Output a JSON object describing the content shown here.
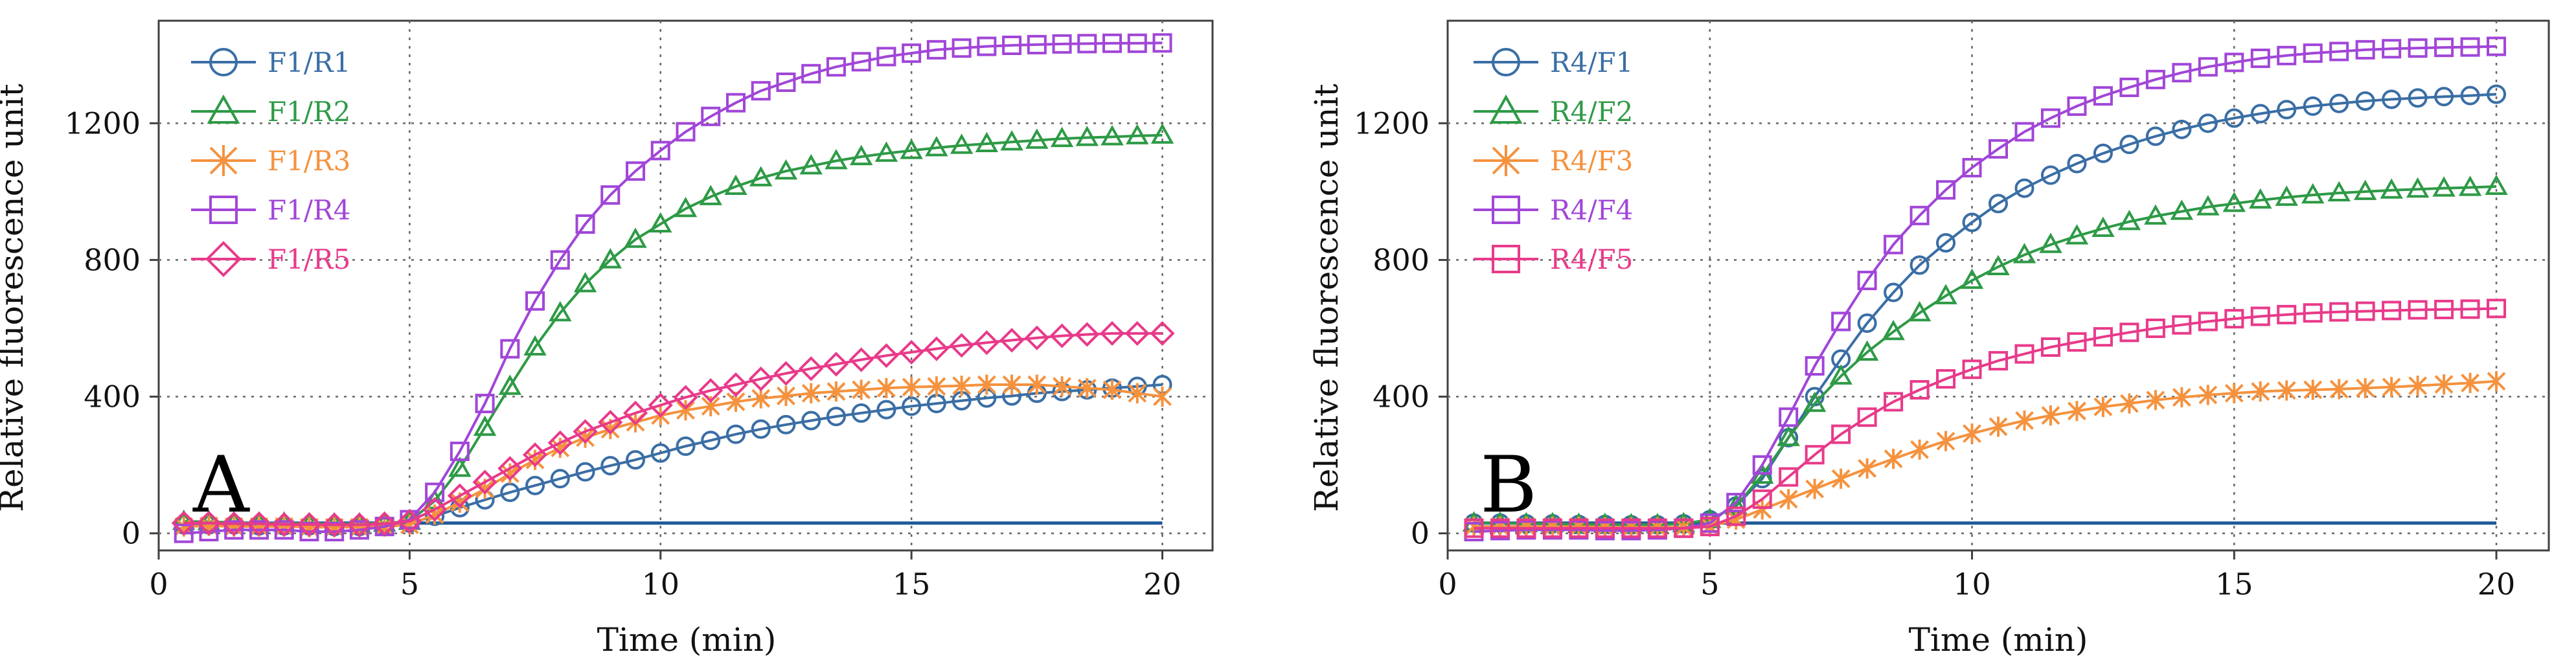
{
  "chart_data": [
    {
      "type": "line",
      "panel_label": "A",
      "xlabel": "Time (min)",
      "ylabel": "Relative fluorescence unit",
      "xlim": [
        0,
        21
      ],
      "ylim": [
        -50,
        1500
      ],
      "xticks": [
        0,
        5,
        10,
        15,
        20
      ],
      "yticks": [
        0,
        400,
        800,
        1200
      ],
      "grid": true,
      "legend_position": "top-left",
      "baseline": {
        "y": 30,
        "x_range": [
          0.5,
          20
        ],
        "color": "#1f5a9a"
      },
      "x": [
        0.5,
        1,
        1.5,
        2,
        2.5,
        3,
        3.5,
        4,
        4.5,
        5,
        5.5,
        6,
        6.5,
        7,
        7.5,
        8,
        8.5,
        9,
        9.5,
        10,
        10.5,
        11,
        11.5,
        12,
        12.5,
        13,
        13.5,
        14,
        14.5,
        15,
        15.5,
        16,
        16.5,
        17,
        17.5,
        18,
        18.5,
        19,
        19.5,
        20
      ],
      "series": [
        {
          "name": "F1/R1",
          "color": "#3a6ea5",
          "marker": "circle",
          "values": [
            25,
            25,
            25,
            22,
            22,
            22,
            20,
            20,
            22,
            30,
            50,
            75,
            98,
            120,
            140,
            160,
            180,
            198,
            215,
            235,
            255,
            272,
            290,
            305,
            318,
            330,
            342,
            352,
            362,
            372,
            380,
            388,
            396,
            402,
            410,
            415,
            420,
            425,
            430,
            435
          ]
        },
        {
          "name": "F1/R2",
          "color": "#2e9a46",
          "marker": "triangle",
          "values": [
            35,
            34,
            32,
            30,
            30,
            28,
            28,
            28,
            30,
            35,
            95,
            190,
            310,
            430,
            545,
            645,
            730,
            800,
            860,
            905,
            950,
            985,
            1015,
            1040,
            1060,
            1075,
            1090,
            1102,
            1112,
            1120,
            1128,
            1135,
            1140,
            1145,
            1150,
            1155,
            1158,
            1160,
            1163,
            1165
          ]
        },
        {
          "name": "F1/R3",
          "color": "#f5923e",
          "marker": "x",
          "values": [
            20,
            22,
            20,
            20,
            20,
            18,
            18,
            18,
            20,
            25,
            55,
            90,
            130,
            175,
            215,
            250,
            280,
            305,
            325,
            345,
            360,
            372,
            385,
            395,
            402,
            410,
            415,
            420,
            425,
            428,
            430,
            432,
            435,
            435,
            435,
            430,
            425,
            420,
            410,
            400
          ]
        },
        {
          "name": "F1/R4",
          "color": "#a146d8",
          "marker": "square",
          "values": [
            0,
            5,
            10,
            10,
            10,
            5,
            5,
            10,
            20,
            40,
            120,
            240,
            380,
            540,
            680,
            800,
            905,
            990,
            1060,
            1120,
            1175,
            1220,
            1260,
            1295,
            1320,
            1345,
            1365,
            1380,
            1395,
            1405,
            1415,
            1420,
            1425,
            1428,
            1430,
            1432,
            1433,
            1434,
            1434,
            1435
          ]
        },
        {
          "name": "F1/R5",
          "color": "#e83a8a",
          "marker": "diamond",
          "values": [
            30,
            30,
            28,
            28,
            26,
            26,
            25,
            25,
            28,
            35,
            70,
            110,
            150,
            190,
            230,
            265,
            298,
            325,
            352,
            375,
            398,
            418,
            435,
            452,
            468,
            482,
            495,
            508,
            520,
            530,
            540,
            550,
            558,
            565,
            572,
            578,
            582,
            585,
            585,
            585
          ]
        }
      ]
    },
    {
      "type": "line",
      "panel_label": "B",
      "xlabel": "Time (min)",
      "ylabel": "Relative fluorescence unit",
      "xlim": [
        0,
        21
      ],
      "ylim": [
        -50,
        1500
      ],
      "xticks": [
        0,
        5,
        10,
        15,
        20
      ],
      "yticks": [
        0,
        400,
        800,
        1200
      ],
      "grid": true,
      "legend_position": "top-left",
      "baseline": {
        "y": 30,
        "x_range": [
          0.5,
          20
        ],
        "color": "#1f5a9a"
      },
      "x": [
        0.5,
        1,
        1.5,
        2,
        2.5,
        3,
        3.5,
        4,
        4.5,
        5,
        5.5,
        6,
        6.5,
        7,
        7.5,
        8,
        8.5,
        9,
        9.5,
        10,
        10.5,
        11,
        11.5,
        12,
        12.5,
        13,
        13.5,
        14,
        14.5,
        15,
        15.5,
        16,
        16.5,
        17,
        17.5,
        18,
        18.5,
        19,
        19.5,
        20
      ],
      "series": [
        {
          "name": "R4/F1",
          "color": "#3a6ea5",
          "marker": "circle",
          "values": [
            30,
            30,
            28,
            28,
            26,
            26,
            25,
            25,
            28,
            40,
            80,
            160,
            280,
            400,
            510,
            615,
            705,
            785,
            850,
            910,
            965,
            1010,
            1048,
            1082,
            1112,
            1138,
            1162,
            1182,
            1200,
            1215,
            1228,
            1240,
            1250,
            1258,
            1265,
            1270,
            1274,
            1278,
            1281,
            1285
          ]
        },
        {
          "name": "R4/F2",
          "color": "#2e9a46",
          "marker": "triangle",
          "values": [
            30,
            30,
            28,
            28,
            26,
            26,
            25,
            25,
            28,
            40,
            80,
            170,
            280,
            380,
            460,
            530,
            590,
            645,
            695,
            740,
            780,
            815,
            845,
            870,
            892,
            912,
            928,
            942,
            955,
            965,
            975,
            983,
            990,
            996,
            1000,
            1004,
            1007,
            1010,
            1012,
            1015
          ]
        },
        {
          "name": "R4/F3",
          "color": "#f5923e",
          "marker": "x",
          "values": [
            20,
            20,
            20,
            20,
            20,
            18,
            18,
            18,
            18,
            20,
            40,
            70,
            100,
            130,
            160,
            190,
            218,
            245,
            270,
            292,
            312,
            330,
            345,
            358,
            370,
            380,
            390,
            398,
            405,
            410,
            415,
            418,
            420,
            422,
            425,
            428,
            432,
            436,
            440,
            445
          ]
        },
        {
          "name": "R4/F4",
          "color": "#a146d8",
          "marker": "square",
          "values": [
            5,
            8,
            10,
            10,
            10,
            8,
            8,
            10,
            15,
            30,
            90,
            200,
            340,
            490,
            620,
            740,
            845,
            930,
            1005,
            1070,
            1125,
            1175,
            1215,
            1250,
            1280,
            1305,
            1328,
            1348,
            1365,
            1378,
            1390,
            1398,
            1405,
            1410,
            1415,
            1418,
            1420,
            1422,
            1423,
            1425
          ]
        },
        {
          "name": "R4/F5",
          "color": "#e83a8a",
          "marker": "square",
          "values": [
            15,
            15,
            15,
            15,
            15,
            15,
            15,
            15,
            15,
            20,
            50,
            100,
            165,
            230,
            290,
            340,
            385,
            420,
            452,
            480,
            505,
            525,
            545,
            560,
            575,
            588,
            600,
            610,
            620,
            628,
            635,
            640,
            645,
            648,
            650,
            652,
            654,
            655,
            656,
            658
          ]
        }
      ]
    }
  ]
}
